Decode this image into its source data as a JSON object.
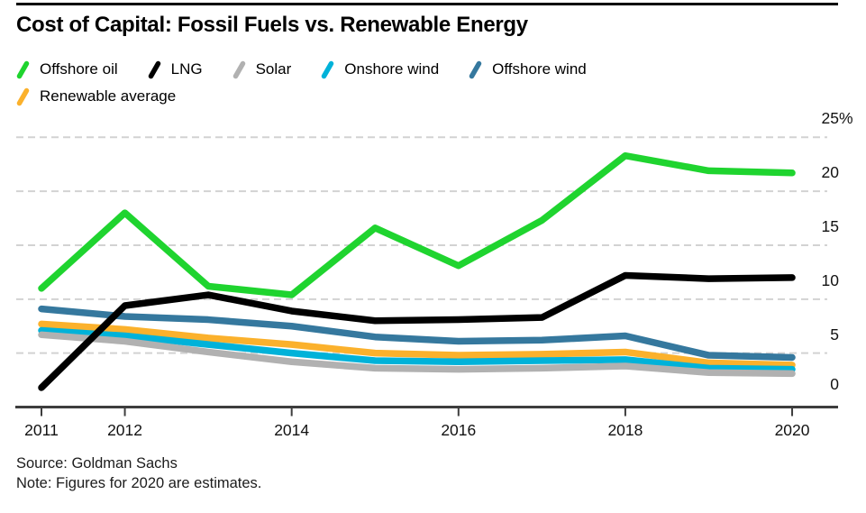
{
  "header": {
    "title": "Cost of Capital: Fossil Fuels vs. Renewable Energy"
  },
  "legend": {
    "rows": [
      [
        "Offshore oil",
        "LNG",
        "Solar",
        "Onshore wind",
        "Offshore wind"
      ],
      [
        "Renewable average"
      ]
    ]
  },
  "chart_data": {
    "type": "line",
    "title": "Cost of Capital: Fossil Fuels vs. Renewable Energy",
    "x": [
      2011,
      2012,
      2013,
      2014,
      2015,
      2016,
      2017,
      2018,
      2019,
      2020
    ],
    "series": [
      {
        "name": "Offshore oil",
        "color": "#1fd42f",
        "values": [
          11.0,
          18.0,
          11.2,
          10.4,
          16.6,
          13.1,
          17.3,
          23.3,
          21.9,
          21.7
        ]
      },
      {
        "name": "LNG",
        "color": "#000000",
        "values": [
          1.8,
          9.4,
          10.4,
          8.9,
          8.0,
          8.1,
          8.3,
          12.2,
          11.9,
          12.0
        ]
      },
      {
        "name": "Solar",
        "color": "#b1b1b1",
        "values": [
          6.7,
          6.1,
          5.1,
          4.2,
          3.6,
          3.5,
          3.6,
          3.8,
          3.2,
          3.1
        ]
      },
      {
        "name": "Onshore wind",
        "color": "#00b2d9",
        "values": [
          7.1,
          6.6,
          5.8,
          5.0,
          4.3,
          4.2,
          4.3,
          4.4,
          3.6,
          3.5
        ]
      },
      {
        "name": "Offshore wind",
        "color": "#35789e",
        "values": [
          9.1,
          8.4,
          8.1,
          7.5,
          6.5,
          6.1,
          6.2,
          6.6,
          4.8,
          4.6
        ]
      },
      {
        "name": "Renewable average",
        "color": "#fbb12c",
        "values": [
          7.7,
          7.2,
          6.4,
          5.8,
          5.0,
          4.8,
          4.9,
          5.1,
          4.1,
          3.9
        ]
      }
    ],
    "ylim": [
      0,
      25
    ],
    "yticks": [
      0,
      5,
      10,
      15,
      20,
      25
    ],
    "ytick_top_suffix": "%",
    "xticks": [
      2011,
      2012,
      2014,
      2016,
      2018,
      2020
    ],
    "grid": "horizontal-dashed",
    "grid_color": "#d2d2d2",
    "axis_color": "#3d3d3d",
    "legend_position": "top-left"
  },
  "footer": {
    "source": "Source: Goldman Sachs",
    "note": "Note: Figures for 2020 are estimates."
  }
}
